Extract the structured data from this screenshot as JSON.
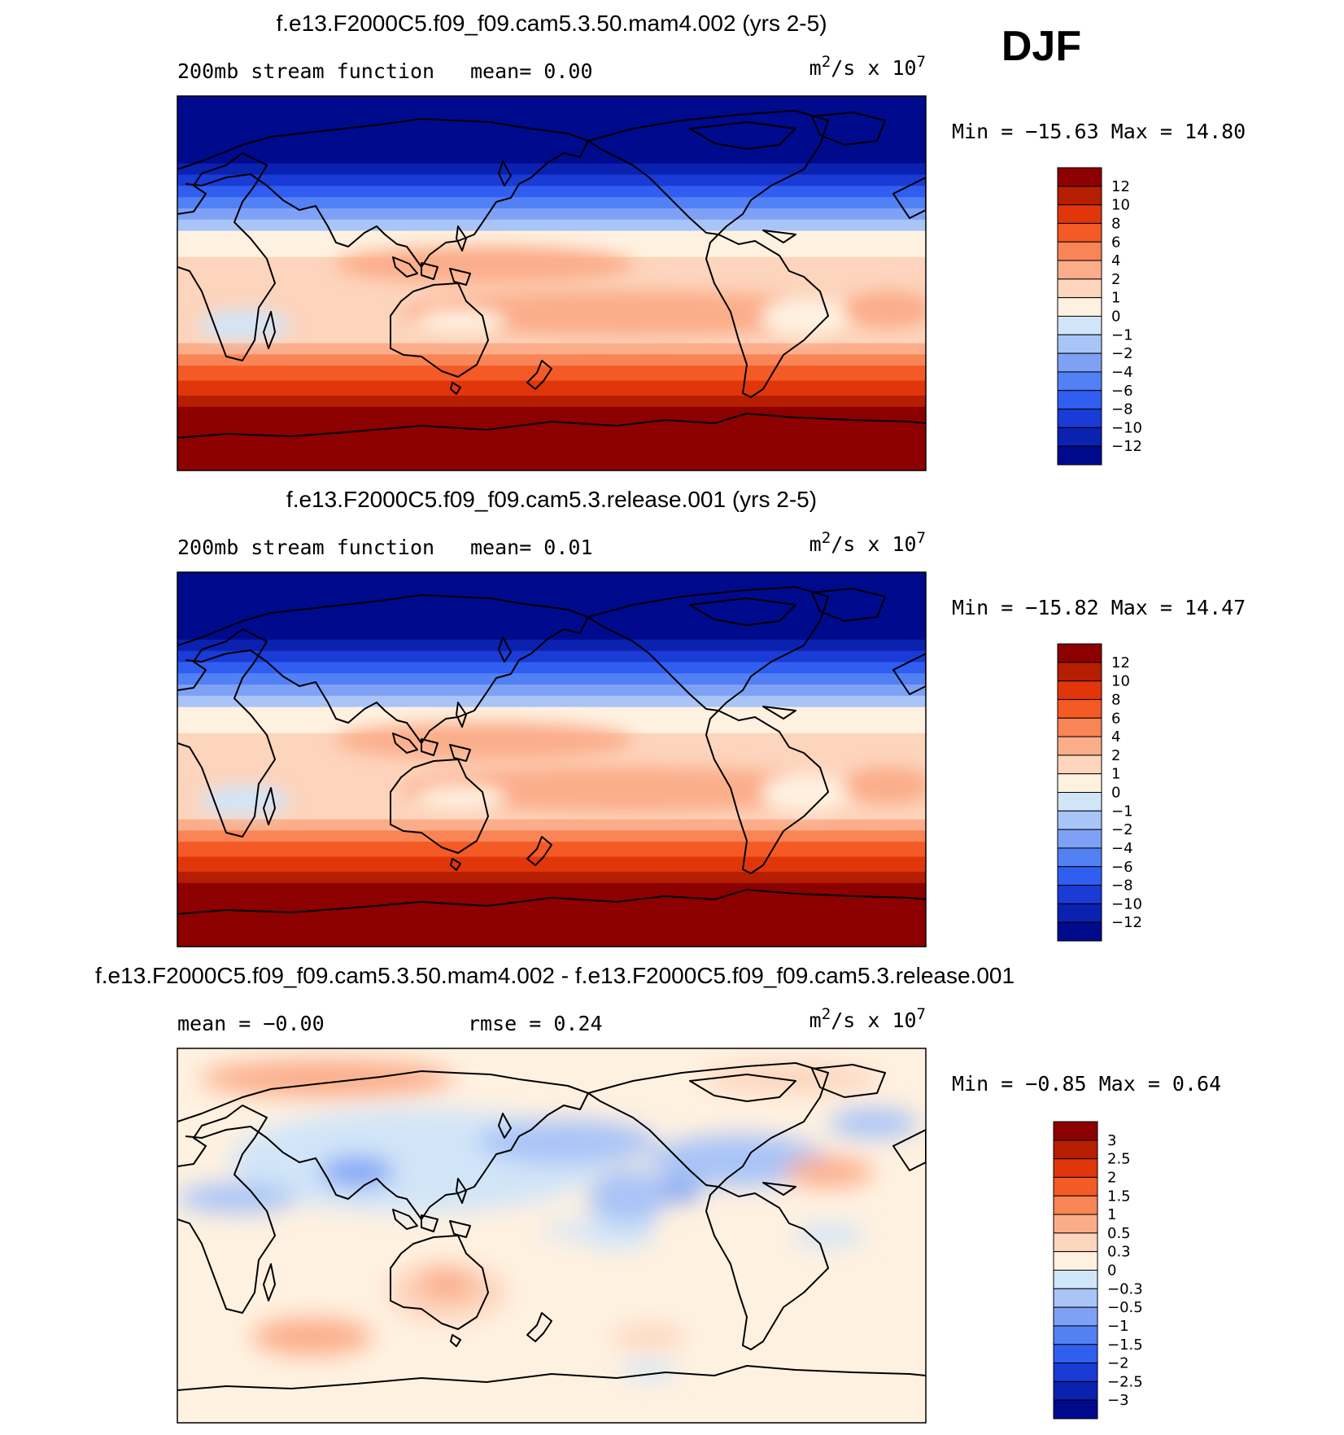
{
  "season": "DJF",
  "unit": {
    "base": "m",
    "sup1": "2",
    "mid": "/s x 10",
    "sup2": "7"
  },
  "palettes": {
    "main": [
      "#000a8c",
      "#0b21b0",
      "#1a3bd6",
      "#2f5ef0",
      "#5280f5",
      "#7ea1f5",
      "#a9c4f7",
      "#d1e5f8",
      "#fff1e0",
      "#fdd4bc",
      "#fbad8a",
      "#f98456",
      "#f45a25",
      "#e0360a",
      "#b61e02",
      "#8c0000"
    ],
    "diff": [
      "#000a8c",
      "#0b21b0",
      "#1a3bd6",
      "#2f5ef0",
      "#5280f5",
      "#7ea1f5",
      "#a9c4f7",
      "#d1e5f8",
      "#fff1e0",
      "#fdd4bc",
      "#fbad8a",
      "#f98456",
      "#f45a25",
      "#e0360a",
      "#b61e02",
      "#8c0000"
    ]
  },
  "panels": [
    {
      "id": "test",
      "title": "f.e13.F2000C5.f09_f09.cam5.3.50.mam4.002 (yrs 2-5)",
      "subtitle_left": "200mb stream function",
      "subtitle_mid": "mean=    0.00",
      "min_max": "Min = −15.63 Max =   14.80",
      "colorbar_labels": [
        "12",
        "10",
        "8",
        "6",
        "4",
        "2",
        "1",
        "0",
        "−1",
        "−2",
        "−4",
        "−6",
        "−8",
        "−10",
        "−12"
      ]
    },
    {
      "id": "control",
      "title": "f.e13.F2000C5.f09_f09.cam5.3.release.001 (yrs 2-5)",
      "subtitle_left": "200mb stream function",
      "subtitle_mid": "mean=    0.01",
      "min_max": "Min = −15.82 Max =   14.47",
      "colorbar_labels": [
        "12",
        "10",
        "8",
        "6",
        "4",
        "2",
        "1",
        "0",
        "−1",
        "−2",
        "−4",
        "−6",
        "−8",
        "−10",
        "−12"
      ]
    },
    {
      "id": "difference",
      "title": "f.e13.F2000C5.f09_f09.cam5.3.50.mam4.002 - f.e13.F2000C5.f09_f09.cam5.3.release.001",
      "subtitle_left": "mean =  −0.00",
      "subtitle_mid": "rmse =    0.24",
      "min_max": "Min =   −0.85 Max =    0.64",
      "colorbar_labels": [
        "3",
        "2.5",
        "2",
        "1.5",
        "1",
        "0.5",
        "0.3",
        "0",
        "−0.3",
        "−0.5",
        "−1",
        "−1.5",
        "−2",
        "−2.5",
        "−3"
      ]
    }
  ],
  "chart_data": [
    {
      "type": "heatmap",
      "title": "f.e13.F2000C5.f09_f09.cam5.3.50.mam4.002 (yrs 2-5)",
      "variable": "200mb stream function",
      "mean": 0.0,
      "min": -15.63,
      "max": 14.8,
      "contour_levels": [
        -12,
        -10,
        -8,
        -6,
        -4,
        -2,
        -1,
        0,
        1,
        2,
        4,
        6,
        8,
        10,
        12
      ]
    },
    {
      "type": "heatmap",
      "title": "f.e13.F2000C5.f09_f09.cam5.3.release.001 (yrs 2-5)",
      "variable": "200mb stream function",
      "mean": 0.01,
      "min": -15.82,
      "max": 14.47,
      "contour_levels": [
        -12,
        -10,
        -8,
        -6,
        -4,
        -2,
        -1,
        0,
        1,
        2,
        4,
        6,
        8,
        10,
        12
      ]
    },
    {
      "type": "heatmap",
      "title": "f.e13.F2000C5.f09_f09.cam5.3.50.mam4.002 - f.e13.F2000C5.f09_f09.cam5.3.release.001",
      "mean": -0.0,
      "rmse": 0.24,
      "min": -0.85,
      "max": 0.64,
      "contour_levels": [
        -3,
        -2.5,
        -2,
        -1.5,
        -1,
        -0.5,
        -0.3,
        0,
        0.3,
        0.5,
        1,
        1.5,
        2,
        2.5,
        3
      ]
    }
  ]
}
